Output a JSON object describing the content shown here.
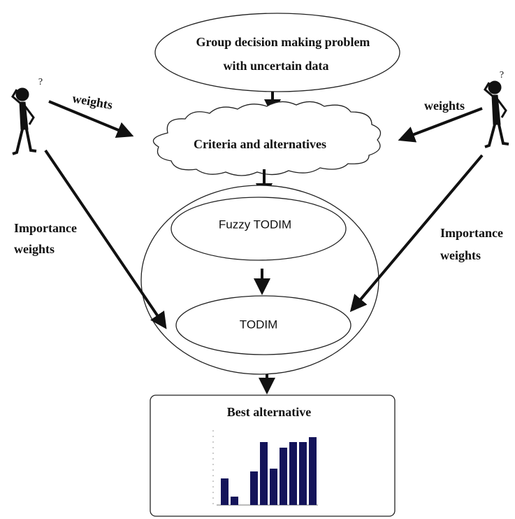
{
  "problem": {
    "lines": [
      "Group decision making problem",
      "with uncertain data"
    ]
  },
  "criteria": "Criteria and alternatives",
  "fuzzy_todim": "Fuzzy TODIM",
  "todim": "TODIM",
  "result": "Best alternative",
  "left_decision_maker": {
    "mark": "?",
    "weights": "weights",
    "importance": [
      "Importance",
      "weights"
    ]
  },
  "right_decision_maker": {
    "mark": "?",
    "weights": "weights",
    "importance": [
      "Importance",
      "weights"
    ]
  }
}
